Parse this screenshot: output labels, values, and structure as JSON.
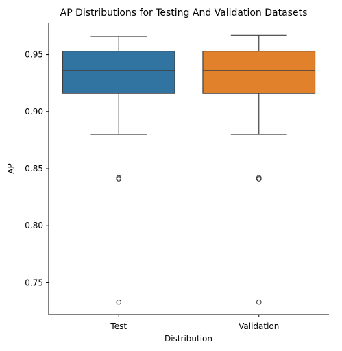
{
  "chart_data": {
    "type": "box",
    "title": "AP Distributions for Testing And Validation Datasets",
    "xlabel": "Distribution",
    "ylabel": "AP",
    "ylim": [
      0.722,
      0.978
    ],
    "yticks": [
      0.75,
      0.8,
      0.85,
      0.9,
      0.95
    ],
    "ytick_labels": [
      "0.75",
      "0.80",
      "0.85",
      "0.90",
      "0.95"
    ],
    "grid": false,
    "categories": [
      "Test",
      "Validation"
    ],
    "boxes": [
      {
        "category": "Test",
        "color": "#3274a1",
        "whisker_low": 0.88,
        "q1": 0.916,
        "median": 0.936,
        "q3": 0.953,
        "whisker_high": 0.966,
        "outliers": [
          0.842,
          0.841,
          0.733
        ]
      },
      {
        "category": "Validation",
        "color": "#e1812c",
        "whisker_low": 0.88,
        "q1": 0.916,
        "median": 0.936,
        "q3": 0.953,
        "whisker_high": 0.967,
        "outliers": [
          0.842,
          0.841,
          0.733
        ]
      }
    ]
  }
}
